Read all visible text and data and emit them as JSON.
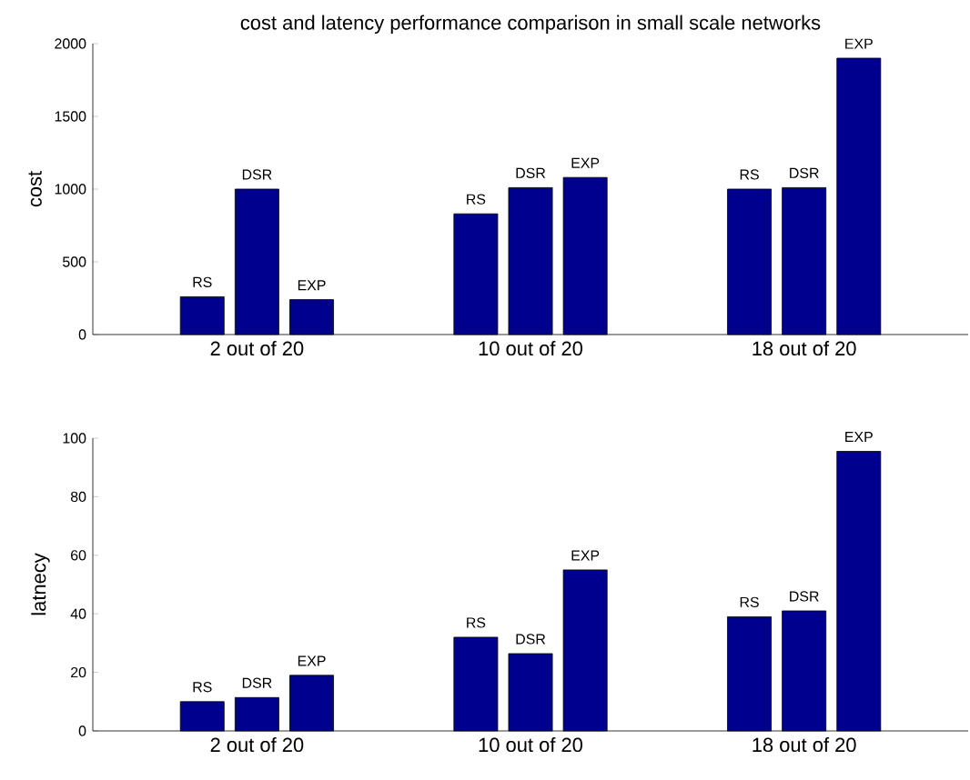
{
  "chart_data": [
    {
      "type": "bar",
      "title": "cost and latency performance comparison in small scale networks",
      "categories": [
        "2 out of 20",
        "10 out of 20",
        "18 out of 20"
      ],
      "ylabel": "cost",
      "ylim": [
        0,
        2000
      ],
      "yticks": [
        0,
        500,
        1000,
        1500,
        2000
      ],
      "series": [
        {
          "name": "RS",
          "color": "#00008f",
          "values": [
            260,
            830,
            1000
          ]
        },
        {
          "name": "DSR",
          "color": "#00008f",
          "values": [
            1000,
            1010,
            1010
          ]
        },
        {
          "name": "EXP",
          "color": "#00008f",
          "values": [
            240,
            1080,
            1900
          ]
        }
      ]
    },
    {
      "type": "bar",
      "categories": [
        "2 out of 20",
        "10 out of 20",
        "18 out of 20"
      ],
      "ylabel": "latnecy",
      "ylim": [
        0,
        100
      ],
      "yticks": [
        0,
        20,
        40,
        60,
        80,
        100
      ],
      "series": [
        {
          "name": "RS",
          "color": "#00008f",
          "values": [
            10,
            32,
            39
          ]
        },
        {
          "name": "DSR",
          "color": "#00008f",
          "values": [
            11.4,
            26.4,
            41
          ]
        },
        {
          "name": "EXP",
          "color": "#00008f",
          "values": [
            19,
            55,
            95.5
          ]
        }
      ]
    }
  ]
}
